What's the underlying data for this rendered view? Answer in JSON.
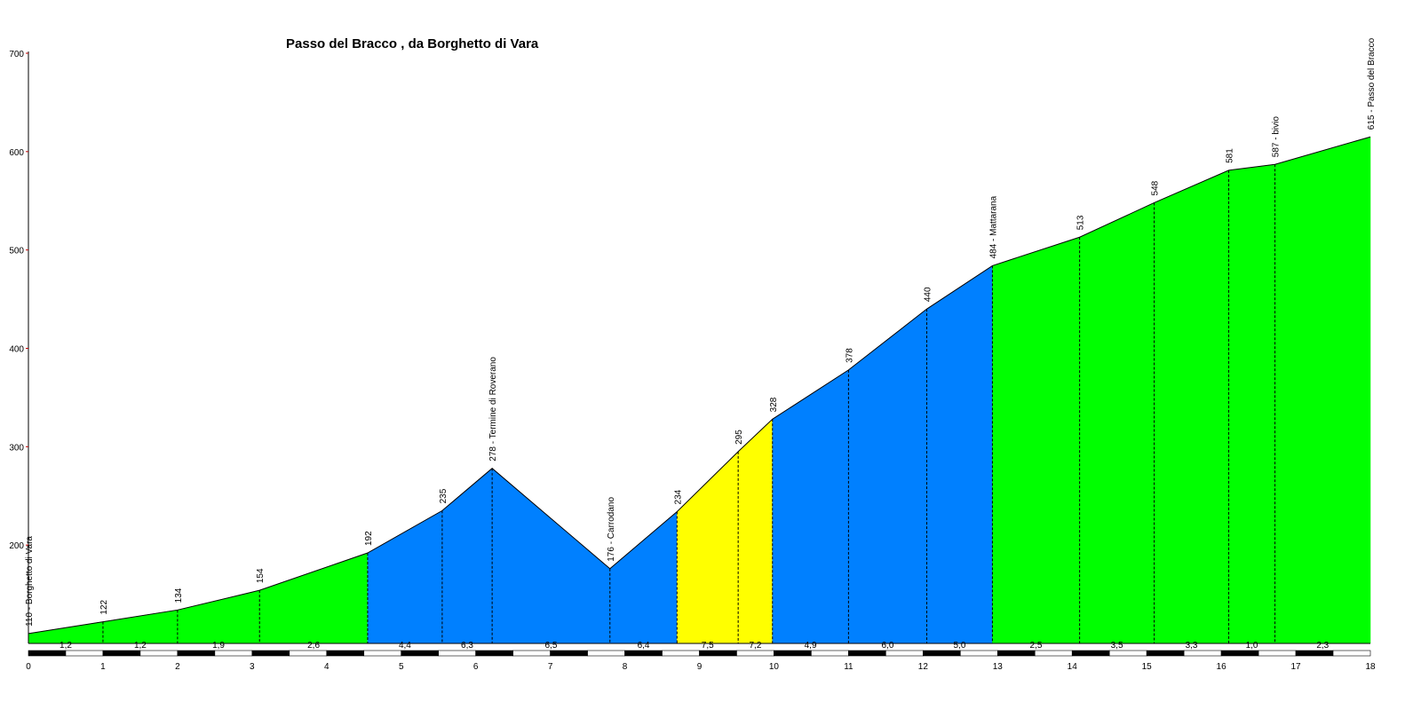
{
  "chart_data": {
    "type": "area",
    "title": "Passo del Bracco , da Borghetto di Vara",
    "xlabel": "",
    "ylabel": "",
    "xlim": [
      0,
      18
    ],
    "ylim": [
      100,
      700
    ],
    "x_ticks": [
      "0",
      "1",
      "2",
      "3",
      "4",
      "5",
      "6",
      "7",
      "8",
      "9",
      "10",
      "11",
      "12",
      "13",
      "14",
      "15",
      "16",
      "17",
      "18"
    ],
    "y_ticks": [
      "200",
      "300",
      "400",
      "500",
      "600",
      "700"
    ],
    "grid": false,
    "profile": [
      {
        "km": 0.0,
        "alt": 110,
        "label": "110 - Borghetto di Vara"
      },
      {
        "km": 1.0,
        "alt": 122,
        "label": "122"
      },
      {
        "km": 2.0,
        "alt": 134,
        "label": "134"
      },
      {
        "km": 3.1,
        "alt": 154,
        "label": "154"
      },
      {
        "km": 4.55,
        "alt": 192,
        "label": "192"
      },
      {
        "km": 5.55,
        "alt": 235,
        "label": "235"
      },
      {
        "km": 6.22,
        "alt": 278,
        "label": "278 - Termine di Roverano"
      },
      {
        "km": 7.8,
        "alt": 176,
        "label": "176 - Carrodano"
      },
      {
        "km": 8.7,
        "alt": 234,
        "label": "234"
      },
      {
        "km": 9.52,
        "alt": 295,
        "label": "295"
      },
      {
        "km": 9.98,
        "alt": 328,
        "label": "328"
      },
      {
        "km": 11.0,
        "alt": 378,
        "label": "378"
      },
      {
        "km": 12.05,
        "alt": 440,
        "label": "440"
      },
      {
        "km": 12.93,
        "alt": 484,
        "label": "484 - Mattarana"
      },
      {
        "km": 14.1,
        "alt": 513,
        "label": "513"
      },
      {
        "km": 15.1,
        "alt": 548,
        "label": "548"
      },
      {
        "km": 16.1,
        "alt": 581,
        "label": "581"
      },
      {
        "km": 16.72,
        "alt": 587,
        "label": "587 - bivio"
      },
      {
        "km": 18.0,
        "alt": 615,
        "label": "615 - Passo del Bracco"
      }
    ],
    "segments": [
      {
        "from": 0.0,
        "to": 1.0,
        "gradient": "1,2",
        "color": "#00ff00"
      },
      {
        "from": 1.0,
        "to": 2.0,
        "gradient": "1,2",
        "color": "#00ff00"
      },
      {
        "from": 2.0,
        "to": 3.1,
        "gradient": "1,9",
        "color": "#00ff00"
      },
      {
        "from": 3.1,
        "to": 4.55,
        "gradient": "2,6",
        "color": "#00ff00"
      },
      {
        "from": 4.55,
        "to": 5.55,
        "gradient": "4,4",
        "color": "#0080ff"
      },
      {
        "from": 5.55,
        "to": 6.22,
        "gradient": "6,3",
        "color": "#0080ff"
      },
      {
        "from": 6.22,
        "to": 7.8,
        "gradient": "6,5",
        "color": "#0080ff"
      },
      {
        "from": 7.8,
        "to": 8.7,
        "gradient": "6,4",
        "color": "#0080ff"
      },
      {
        "from": 8.7,
        "to": 9.52,
        "gradient": "7,5",
        "color": "#ffff00"
      },
      {
        "from": 9.52,
        "to": 9.98,
        "gradient": "7,2",
        "color": "#ffff00"
      },
      {
        "from": 9.98,
        "to": 11.0,
        "gradient": "4,9",
        "color": "#0080ff"
      },
      {
        "from": 11.0,
        "to": 12.05,
        "gradient": "6,0",
        "color": "#0080ff"
      },
      {
        "from": 12.05,
        "to": 12.93,
        "gradient": "5,0",
        "color": "#0080ff"
      },
      {
        "from": 12.93,
        "to": 14.1,
        "gradient": "2,5",
        "color": "#00ff00"
      },
      {
        "from": 14.1,
        "to": 15.1,
        "gradient": "3,5",
        "color": "#00ff00"
      },
      {
        "from": 15.1,
        "to": 16.1,
        "gradient": "3,3",
        "color": "#00ff00"
      },
      {
        "from": 16.1,
        "to": 16.72,
        "gradient": "1,0",
        "color": "#00ff00"
      },
      {
        "from": 16.72,
        "to": 18.0,
        "gradient": "2,3",
        "color": "#00ff00"
      }
    ],
    "colors": {
      "green": "#00ff00",
      "blue": "#0080ff",
      "yellow": "#ffff00",
      "axis": "#000000"
    }
  }
}
